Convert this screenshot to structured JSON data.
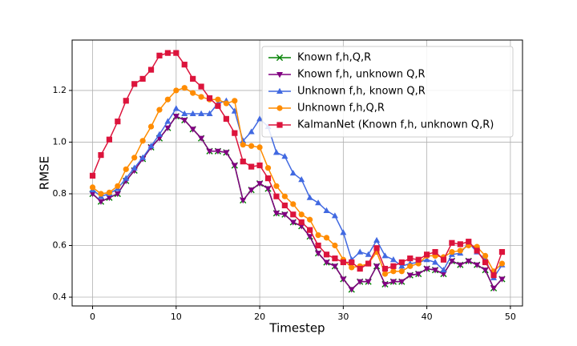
{
  "chart_data": {
    "type": "line",
    "xlabel": "Timestep",
    "ylabel": "RMSE",
    "x": [
      0,
      1,
      2,
      3,
      4,
      5,
      6,
      7,
      8,
      9,
      10,
      11,
      12,
      13,
      14,
      15,
      16,
      17,
      18,
      19,
      20,
      21,
      22,
      23,
      24,
      25,
      26,
      27,
      28,
      29,
      30,
      31,
      32,
      33,
      34,
      35,
      36,
      37,
      38,
      39,
      40,
      41,
      42,
      43,
      44,
      45,
      46,
      47,
      48,
      49
    ],
    "xlim": [
      -2.45,
      51.45
    ],
    "xticks": [
      0,
      10,
      20,
      30,
      40,
      50
    ],
    "ylim": [
      0.366,
      1.395
    ],
    "yticks": [
      0.4,
      0.6,
      0.8,
      {
        "value": 1.0,
        "label": "1.0"
      },
      1.2
    ],
    "grid": true,
    "legend": "upper right",
    "series": [
      {
        "name": "Known f,h,Q,R",
        "color": "#008000",
        "marker": "x",
        "values": [
          0.8,
          0.77,
          0.785,
          0.8,
          0.85,
          0.89,
          0.935,
          0.98,
          1.015,
          1.055,
          1.1,
          1.085,
          1.05,
          1.015,
          0.965,
          0.965,
          0.96,
          0.91,
          0.775,
          0.815,
          0.84,
          0.82,
          0.725,
          0.72,
          0.69,
          0.675,
          0.635,
          0.57,
          0.535,
          0.52,
          0.47,
          0.43,
          0.46,
          0.46,
          0.52,
          0.45,
          0.46,
          0.46,
          0.485,
          0.49,
          0.51,
          0.505,
          0.49,
          0.54,
          0.525,
          0.54,
          0.525,
          0.505,
          0.435,
          0.47
        ]
      },
      {
        "name": "Known f,h, unknown Q,R",
        "color": "#800080",
        "marker": "v",
        "values": [
          0.8,
          0.77,
          0.785,
          0.8,
          0.85,
          0.89,
          0.935,
          0.98,
          1.015,
          1.055,
          1.1,
          1.085,
          1.05,
          1.015,
          0.965,
          0.965,
          0.96,
          0.91,
          0.775,
          0.815,
          0.84,
          0.82,
          0.725,
          0.72,
          0.69,
          0.675,
          0.635,
          0.57,
          0.535,
          0.52,
          0.47,
          0.43,
          0.46,
          0.46,
          0.52,
          0.45,
          0.46,
          0.46,
          0.485,
          0.49,
          0.51,
          0.505,
          0.49,
          0.54,
          0.525,
          0.54,
          0.525,
          0.505,
          0.435,
          0.47
        ]
      },
      {
        "name": "Unknown f,h, known Q,R",
        "color": "#4169e1",
        "marker": "^",
        "values": [
          0.815,
          0.79,
          0.8,
          0.82,
          0.86,
          0.9,
          0.94,
          0.985,
          1.03,
          1.08,
          1.13,
          1.11,
          1.11,
          1.11,
          1.11,
          1.15,
          1.16,
          1.12,
          1.005,
          1.04,
          1.09,
          1.06,
          0.96,
          0.945,
          0.88,
          0.855,
          0.785,
          0.765,
          0.735,
          0.715,
          0.65,
          0.545,
          0.575,
          0.565,
          0.62,
          0.56,
          0.545,
          0.52,
          0.53,
          0.535,
          0.545,
          0.535,
          0.505,
          0.565,
          0.57,
          0.61,
          0.575,
          0.545,
          0.475,
          0.525
        ]
      },
      {
        "name": "Unknown f,h,Q,R",
        "color": "#ff8c00",
        "marker": "o",
        "values": [
          0.825,
          0.8,
          0.805,
          0.83,
          0.895,
          0.94,
          1.005,
          1.06,
          1.125,
          1.165,
          1.2,
          1.21,
          1.19,
          1.175,
          1.165,
          1.165,
          1.15,
          1.16,
          0.99,
          0.985,
          0.98,
          0.9,
          0.83,
          0.79,
          0.76,
          0.72,
          0.7,
          0.64,
          0.63,
          0.6,
          0.545,
          0.515,
          0.52,
          0.53,
          0.575,
          0.49,
          0.5,
          0.5,
          0.52,
          0.53,
          0.56,
          0.56,
          0.555,
          0.575,
          0.58,
          0.6,
          0.595,
          0.56,
          0.5,
          0.53
        ]
      },
      {
        "name": "KalmanNet (Known f,h, unknown Q,R)",
        "color": "#dc143c",
        "marker": "s",
        "values": [
          0.87,
          0.95,
          1.01,
          1.08,
          1.16,
          1.225,
          1.245,
          1.28,
          1.335,
          1.345,
          1.345,
          1.3,
          1.245,
          1.215,
          1.17,
          1.14,
          1.09,
          1.035,
          0.925,
          0.905,
          0.91,
          0.86,
          0.79,
          0.755,
          0.72,
          0.69,
          0.66,
          0.6,
          0.565,
          0.55,
          0.535,
          0.535,
          0.51,
          0.53,
          0.59,
          0.51,
          0.52,
          0.535,
          0.55,
          0.545,
          0.565,
          0.575,
          0.545,
          0.61,
          0.605,
          0.615,
          0.58,
          0.535,
          0.485,
          0.575
        ]
      }
    ]
  }
}
